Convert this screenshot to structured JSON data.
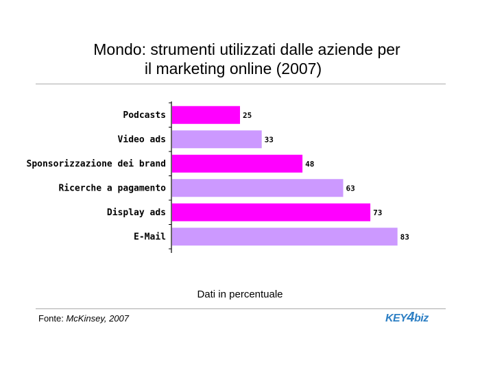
{
  "chart_data": {
    "type": "bar",
    "orientation": "horizontal",
    "title_line1": "Mondo: strumenti utilizzati dalle aziende per",
    "title_line2": "il marketing online (2007)",
    "categories": [
      "Podcasts",
      "Video ads",
      "Sponsorizzazione dei brand",
      "Ricerche a pagamento",
      "Display ads",
      "E-Mail"
    ],
    "values": [
      25,
      33,
      48,
      63,
      73,
      83
    ],
    "value_labels": [
      "25",
      "33",
      "48",
      "63",
      "73",
      "83"
    ],
    "xlim": [
      0,
      100
    ],
    "grid": false,
    "bar_colors": [
      "#ff00ff",
      "#cc99ff",
      "#ff00ff",
      "#cc99ff",
      "#ff00ff",
      "#cc99ff"
    ],
    "footnote": "Dati in percentuale"
  },
  "source": {
    "prefix": "Fonte: ",
    "name": "McKinsey, 2007"
  },
  "logo": {
    "part1": "KEY",
    "part2": "4",
    "part3": "biz"
  },
  "colors": {
    "magenta": "#ff00ff",
    "lavender": "#cc99ff",
    "rule": "#aaaaaa"
  }
}
